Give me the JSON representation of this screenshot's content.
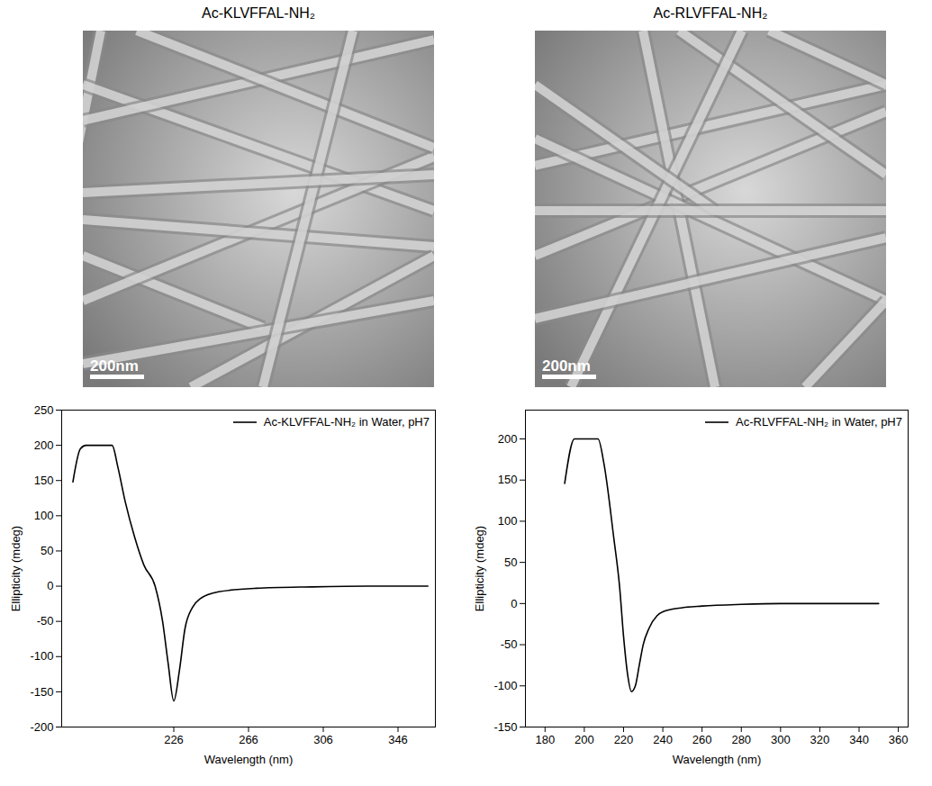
{
  "panels": [
    {
      "title": "Ac-KLVFFAL-NH₂",
      "scale_bar": "200nm"
    },
    {
      "title": "Ac-RLVFFAL-NH₂",
      "scale_bar": "200nm"
    }
  ],
  "chart_data": [
    {
      "type": "line",
      "x_label": "Wavelength (nm)",
      "y_label": "Ellipticity (mdeg)",
      "xlim": [
        166,
        366
      ],
      "xticks": [
        226,
        266,
        306,
        346
      ],
      "ylim": [
        -200,
        250
      ],
      "yticks": [
        -200,
        -150,
        -100,
        -50,
        0,
        50,
        100,
        150,
        200,
        250
      ],
      "legend": "top-right",
      "series": [
        {
          "name": "Ac-KLVFFAL-NH₂ in Water, pH7",
          "color": "#000000",
          "x": [
            172,
            176,
            179,
            193,
            196,
            200,
            205,
            210,
            216,
            220,
            223,
            226,
            229,
            232,
            236,
            240,
            250,
            270,
            300,
            330,
            362
          ],
          "values": [
            148,
            195,
            200,
            200,
            170,
            120,
            70,
            30,
            0,
            -50,
            -110,
            -163,
            -120,
            -60,
            -30,
            -18,
            -8,
            -3,
            -1,
            0,
            0
          ]
        }
      ]
    },
    {
      "type": "line",
      "x_label": "Wavelength (nm)",
      "y_label": "Ellipticity (mdeg)",
      "xlim": [
        170,
        365
      ],
      "xticks": [
        180,
        200,
        220,
        240,
        260,
        280,
        300,
        320,
        340,
        360
      ],
      "ylim": [
        -150,
        235
      ],
      "yticks": [
        -150,
        -100,
        -50,
        0,
        50,
        100,
        150,
        200
      ],
      "legend": "top-right",
      "series": [
        {
          "name": "Ac-RLVFFAL-NH₂ in Water, pH7",
          "color": "#000000",
          "x": [
            190,
            195,
            207,
            210,
            215,
            218,
            220,
            222,
            224,
            226,
            228,
            230,
            233,
            237,
            240,
            250,
            260,
            280,
            300,
            350
          ],
          "values": [
            146,
            200,
            200,
            170,
            80,
            20,
            -40,
            -85,
            -107,
            -100,
            -75,
            -50,
            -30,
            -15,
            -10,
            -5,
            -3,
            -1,
            0,
            0
          ]
        }
      ]
    }
  ]
}
